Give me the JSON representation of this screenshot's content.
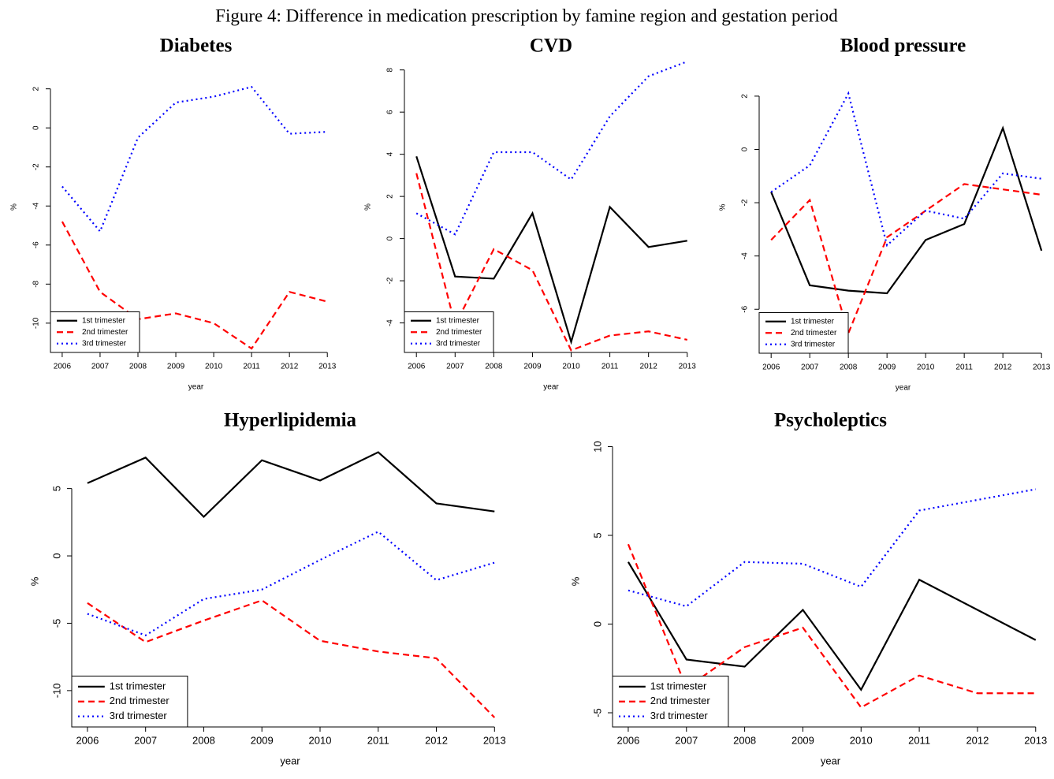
{
  "title": "Figure 4: Difference in medication prescription by famine region and gestation period",
  "chart_data": [
    {
      "type": "line",
      "title": "Diabetes",
      "xlabel": "year",
      "ylabel": "%",
      "x": [
        2006,
        2007,
        2008,
        2009,
        2010,
        2011,
        2012,
        2013
      ],
      "xlim": [
        2005.69,
        2013.37
      ],
      "xticks": [
        2006,
        2007,
        2008,
        2009,
        2010,
        2011,
        2012,
        2013
      ],
      "ylim": [
        -11.5,
        3.4
      ],
      "yticks": [
        -10,
        -8,
        -6,
        -4,
        -2,
        0,
        2
      ],
      "legend": "lower left",
      "series": [
        {
          "name": "1st trimester",
          "color": "#000000",
          "dash": "solid",
          "values": [
            null,
            null,
            null,
            null,
            null,
            null,
            null,
            null
          ]
        },
        {
          "name": "2nd trimester",
          "color": "#ff0000",
          "dash": "dashed",
          "values": [
            -4.8,
            -8.4,
            -9.8,
            -9.5,
            -10.0,
            -11.3,
            -8.4,
            -8.9
          ]
        },
        {
          "name": "3rd trimester",
          "color": "#0000ff",
          "dash": "dotted",
          "values": [
            -3.0,
            -5.3,
            -0.5,
            1.3,
            1.6,
            2.1,
            -0.3,
            -0.2
          ]
        }
      ]
    },
    {
      "type": "line",
      "title": "CVD",
      "xlabel": "year",
      "ylabel": "%",
      "x": [
        2006,
        2007,
        2008,
        2009,
        2010,
        2011,
        2012,
        2013
      ],
      "xlim": [
        2005.69,
        2013.27
      ],
      "xticks": [
        2006,
        2007,
        2008,
        2009,
        2010,
        2011,
        2012,
        2013
      ],
      "ylim": [
        -5.4,
        8.4
      ],
      "yticks": [
        -4,
        -2,
        0,
        2,
        4,
        6,
        8
      ],
      "legend": "lower left",
      "series": [
        {
          "name": "1st trimester",
          "color": "#000000",
          "dash": "solid",
          "values": [
            3.9,
            -1.8,
            -1.9,
            1.2,
            -4.9,
            1.5,
            -0.4,
            -0.1
          ]
        },
        {
          "name": "2nd trimester",
          "color": "#ff0000",
          "dash": "dashed",
          "values": [
            3.1,
            -4.1,
            -0.5,
            -1.5,
            -5.3,
            -4.6,
            -4.4,
            -4.8
          ]
        },
        {
          "name": "3rd trimester",
          "color": "#0000ff",
          "dash": "dotted",
          "values": [
            1.2,
            0.2,
            4.1,
            4.1,
            2.8,
            5.8,
            7.7,
            8.4
          ]
        }
      ]
    },
    {
      "type": "line",
      "title": "Blood pressure",
      "xlabel": "year",
      "ylabel": "%",
      "x": [
        2006,
        2007,
        2008,
        2009,
        2010,
        2011,
        2012,
        2013
      ],
      "xlim": [
        2005.69,
        2013.14
      ],
      "xticks": [
        2006,
        2007,
        2008,
        2009,
        2010,
        2011,
        2012,
        2013
      ],
      "ylim": [
        -7.65,
        3.3
      ],
      "yticks": [
        -6,
        -4,
        -2,
        0,
        2
      ],
      "legend": "lower left",
      "series": [
        {
          "name": "1st trimester",
          "color": "#000000",
          "dash": "solid",
          "values": [
            -1.6,
            -5.1,
            -5.3,
            -5.4,
            -3.4,
            -2.8,
            0.8,
            -3.8
          ]
        },
        {
          "name": "2nd trimester",
          "color": "#ff0000",
          "dash": "dashed",
          "values": [
            -3.4,
            -1.9,
            -6.9,
            -3.3,
            -2.3,
            -1.3,
            -1.5,
            -1.7
          ]
        },
        {
          "name": "3rd trimester",
          "color": "#0000ff",
          "dash": "dotted",
          "values": [
            -1.6,
            -0.6,
            2.1,
            -3.6,
            -2.3,
            -2.6,
            -0.9,
            -1.1
          ]
        }
      ]
    },
    {
      "type": "line",
      "title": "Hyperlipidemia",
      "xlabel": "year",
      "ylabel": "%",
      "x": [
        2006,
        2007,
        2008,
        2009,
        2010,
        2011,
        2012,
        2013
      ],
      "xlim": [
        2005.73,
        2013.24
      ],
      "xticks": [
        2006,
        2007,
        2008,
        2009,
        2010,
        2011,
        2012,
        2013
      ],
      "ylim": [
        -12.7,
        8.9
      ],
      "yticks": [
        -10,
        -5,
        0,
        5
      ],
      "legend": "lower left",
      "series": [
        {
          "name": "1st trimester",
          "color": "#000000",
          "dash": "solid",
          "values": [
            5.4,
            7.3,
            2.9,
            7.1,
            5.6,
            7.7,
            3.9,
            3.3
          ]
        },
        {
          "name": "2nd trimester",
          "color": "#ff0000",
          "dash": "dashed",
          "values": [
            -3.5,
            -6.4,
            -4.8,
            -3.3,
            -6.3,
            -7.1,
            -7.6,
            -12.0
          ]
        },
        {
          "name": "3rd trimester",
          "color": "#0000ff",
          "dash": "dotted",
          "values": [
            -4.3,
            -5.9,
            -3.2,
            -2.5,
            -0.3,
            1.8,
            -1.8,
            -0.5
          ]
        }
      ]
    },
    {
      "type": "line",
      "title": "Psycholeptics",
      "xlabel": "year",
      "ylabel": "%",
      "x": [
        2006,
        2007,
        2008,
        2009,
        2010,
        2011,
        2012,
        2013
      ],
      "xlim": [
        2005.73,
        2013.22
      ],
      "xticks": [
        2006,
        2007,
        2008,
        2009,
        2010,
        2011,
        2012,
        2013
      ],
      "ylim": [
        -5.8,
        10.6
      ],
      "yticks": [
        -5,
        0,
        5,
        10
      ],
      "legend": "lower left",
      "series": [
        {
          "name": "1st trimester",
          "color": "#000000",
          "dash": "solid",
          "values": [
            3.5,
            -2.0,
            -2.4,
            0.8,
            -3.7,
            2.5,
            0.8,
            -0.9
          ]
        },
        {
          "name": "2nd trimester",
          "color": "#ff0000",
          "dash": "dashed",
          "values": [
            4.5,
            -3.6,
            -1.3,
            -0.2,
            -4.7,
            -2.9,
            -3.9,
            -3.9
          ]
        },
        {
          "name": "3rd trimester",
          "color": "#0000ff",
          "dash": "dotted",
          "values": [
            1.9,
            1.0,
            3.5,
            3.4,
            2.1,
            6.4,
            7.0,
            7.6
          ]
        }
      ]
    }
  ]
}
